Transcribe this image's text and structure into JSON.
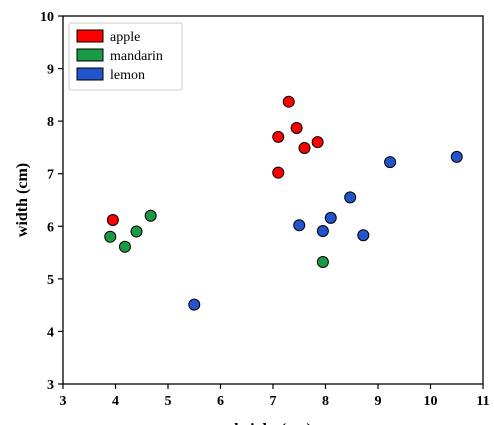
{
  "chart_data": {
    "type": "scatter",
    "title": "",
    "xlabel": "height (cm)",
    "ylabel": "width (cm)",
    "xlim": [
      3,
      11
    ],
    "ylim": [
      3,
      10
    ],
    "xticks": [
      3,
      4,
      5,
      6,
      7,
      8,
      9,
      10,
      11
    ],
    "yticks": [
      3,
      4,
      5,
      6,
      7,
      8,
      9,
      10
    ],
    "grid": false,
    "legend_position": "top-left",
    "series": [
      {
        "name": "apple",
        "color": "#ff0000",
        "points": [
          [
            3.95,
            6.12
          ],
          [
            7.1,
            7.7
          ],
          [
            7.1,
            7.02
          ],
          [
            7.3,
            8.37
          ],
          [
            7.45,
            7.87
          ],
          [
            7.6,
            7.49
          ],
          [
            7.85,
            7.6
          ]
        ]
      },
      {
        "name": "mandarin",
        "color": "#1a9a45",
        "points": [
          [
            3.9,
            5.8
          ],
          [
            4.18,
            5.61
          ],
          [
            4.4,
            5.9
          ],
          [
            4.67,
            6.2
          ],
          [
            7.95,
            5.32
          ]
        ]
      },
      {
        "name": "lemon",
        "color": "#2255cc",
        "points": [
          [
            5.5,
            4.51
          ],
          [
            7.5,
            6.02
          ],
          [
            7.95,
            5.91
          ],
          [
            8.1,
            6.16
          ],
          [
            8.47,
            6.55
          ],
          [
            8.72,
            5.83
          ],
          [
            9.23,
            7.22
          ],
          [
            10.5,
            7.32
          ]
        ]
      }
    ]
  }
}
